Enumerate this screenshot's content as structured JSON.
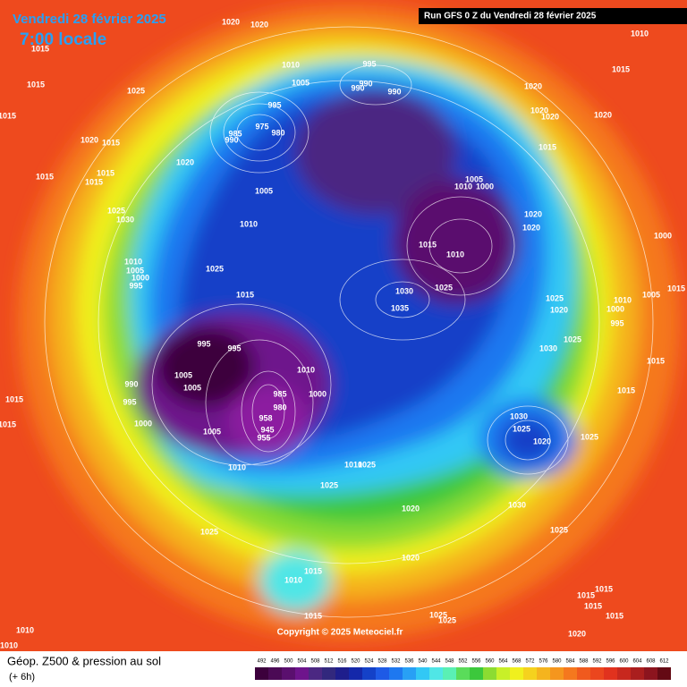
{
  "header": {
    "date": "Vendredi 28 février 2025",
    "time": "7:00 locale",
    "run": "Run GFS 0 Z du Vendredi 28 février 2025"
  },
  "copyright": "Copyright © 2025 Meteociel.fr",
  "footer": {
    "title": "Géop. Z500 & pression au sol",
    "lead": "(+ 6h)"
  },
  "isobars": [
    "1015",
    "1020",
    "1020",
    "1015",
    "1025",
    "1015",
    "1020",
    "1015",
    "1020",
    "1015",
    "1015",
    "1015",
    "1025",
    "1030",
    "1010",
    "995",
    "1005",
    "990",
    "990",
    "990",
    "995",
    "975",
    "980",
    "985",
    "990",
    "1005",
    "1010",
    "1020",
    "1020",
    "1020",
    "1020",
    "1015",
    "1005",
    "1010",
    "1000",
    "1020",
    "1020",
    "1015",
    "1010",
    "1025",
    "1030",
    "1035",
    "1010",
    "1015",
    "1000",
    "1005",
    "1010",
    "1000",
    "995",
    "1025",
    "1020",
    "1025",
    "1030",
    "1015",
    "1015",
    "1010",
    "1005",
    "1000",
    "995",
    "1025",
    "1015",
    "995",
    "995",
    "1005",
    "1005",
    "990",
    "995",
    "1000",
    "1005",
    "1010",
    "1000",
    "985",
    "980",
    "958",
    "945",
    "955",
    "1010",
    "1030",
    "1025",
    "1020",
    "1025",
    "1030",
    "1025",
    "1025",
    "1020",
    "1020",
    "1010",
    "1025",
    "1025",
    "1015",
    "1010",
    "1015",
    "1015",
    "1015",
    "1010",
    "1010",
    "1015",
    "1015",
    "1015",
    "1015",
    "1025",
    "1025",
    "1020",
    "1015"
  ],
  "colorbar": {
    "levels": [
      492,
      496,
      500,
      504,
      508,
      512,
      516,
      520,
      524,
      528,
      532,
      536,
      540,
      544,
      548,
      552,
      556,
      560,
      564,
      568,
      572,
      576,
      580,
      584,
      588,
      592,
      596,
      600,
      604,
      608,
      612
    ],
    "colors": [
      "#3c003c",
      "#4b0a55",
      "#5a0f6e",
      "#6e148c",
      "#4b2882",
      "#32287d",
      "#1e1e8c",
      "#1428aa",
      "#1441c8",
      "#1e5ae6",
      "#1e78f0",
      "#28a0f5",
      "#32c8f5",
      "#50e6e6",
      "#5af0b4",
      "#5adc5a",
      "#3cc83c",
      "#8cdc32",
      "#c8f028",
      "#f0f01e",
      "#f5d21e",
      "#f5b41e",
      "#f5961e",
      "#f5781e",
      "#f05a1e",
      "#eb461e",
      "#e1321e",
      "#c8281e",
      "#aa1e1e",
      "#8c141e",
      "#640a14"
    ]
  }
}
